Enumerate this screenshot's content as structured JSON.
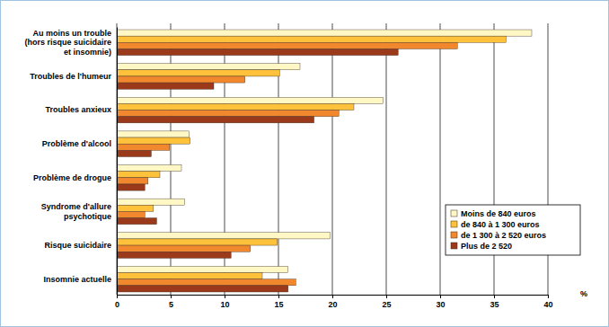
{
  "chart_data": {
    "type": "bar",
    "orientation": "horizontal",
    "categories": [
      "Au moins un trouble\n(hors risque suicidaire\net insomnie)",
      "Troubles de l'humeur",
      "Troubles anxieux",
      "Problème d'alcool",
      "Problème de drogue",
      "Syndrome d'allure\npsychotique",
      "Risque suicidaire",
      "Insomnie actuelle"
    ],
    "series": [
      {
        "name": "Moins de 840 euros",
        "color": "#FFF8C4",
        "values": [
          38.5,
          17.0,
          24.7,
          6.7,
          6.0,
          6.3,
          19.8,
          15.9
        ]
      },
      {
        "name": "de 840 à 1 300 euros",
        "color": "#FFC23A",
        "values": [
          36.1,
          15.1,
          22.0,
          6.8,
          4.0,
          3.4,
          14.9,
          13.5
        ]
      },
      {
        "name": "de 1 300 à 2 520 euros",
        "color": "#F2882E",
        "values": [
          31.6,
          11.9,
          20.6,
          4.9,
          2.9,
          2.6,
          12.4,
          16.6
        ]
      },
      {
        "name": "Plus de 2 520",
        "color": "#9A3A1A",
        "values": [
          26.1,
          9.0,
          18.3,
          3.2,
          2.6,
          3.7,
          10.6,
          15.9
        ]
      }
    ],
    "xlabel": "%",
    "xlim": [
      0,
      40
    ],
    "xticks": [
      0,
      5,
      10,
      15,
      20,
      25,
      30,
      35,
      40
    ],
    "grid": true,
    "legend": "lower right"
  }
}
